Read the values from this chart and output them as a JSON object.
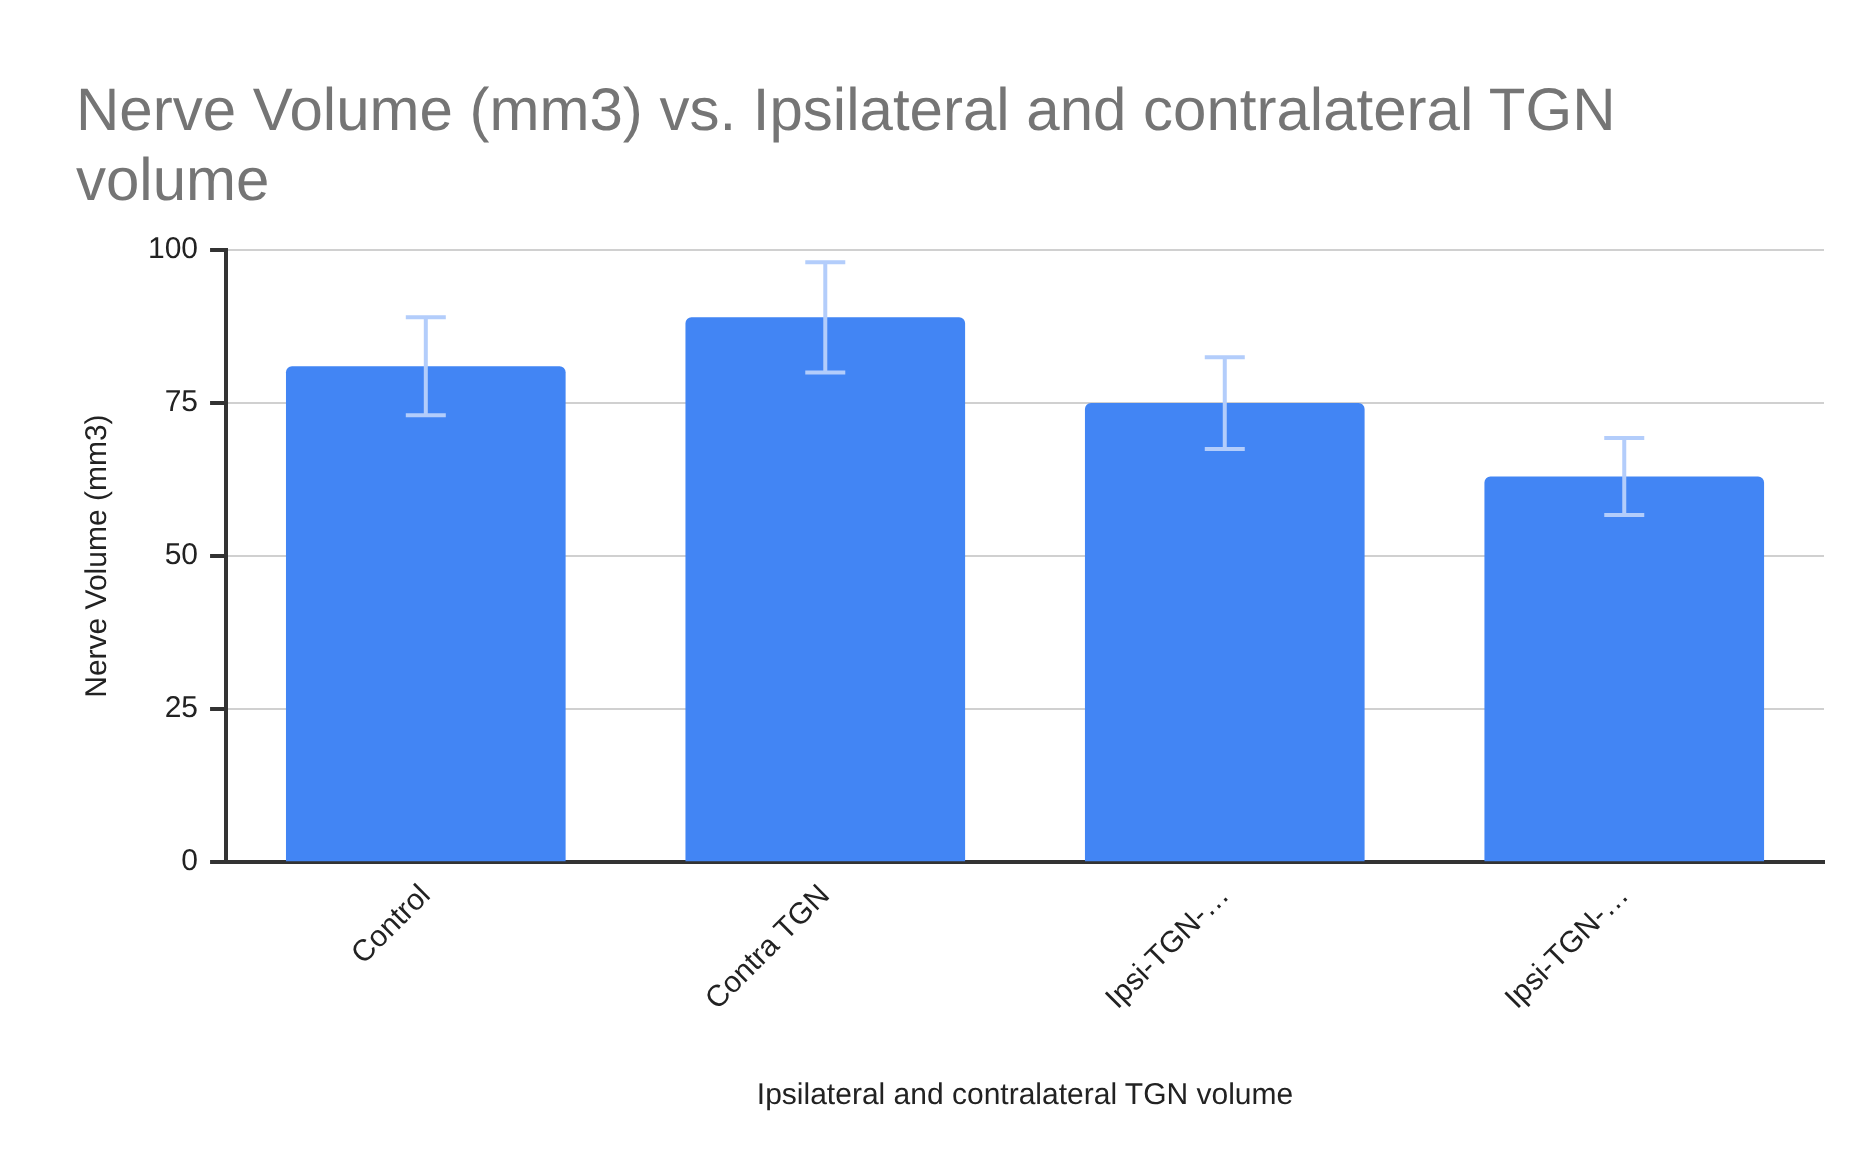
{
  "chart_data": {
    "type": "bar",
    "title": "Nerve Volume (mm3) vs. Ipsilateral and contralateral TGN volume",
    "xlabel": "Ipsilateral and contralateral TGN volume",
    "ylabel": "Nerve Volume (mm3)",
    "categories": [
      "Control",
      "Contra TGN",
      "Ipsi-TGN-…",
      "Ipsi-TGN-…"
    ],
    "values": [
      81,
      89,
      75,
      63
    ],
    "errors": [
      8,
      9,
      7.5,
      6.3
    ],
    "color": "#4285f4",
    "ylim": [
      0,
      100
    ],
    "yticks": [
      0,
      25,
      50,
      75,
      100
    ],
    "grid": "y",
    "legend": false
  }
}
